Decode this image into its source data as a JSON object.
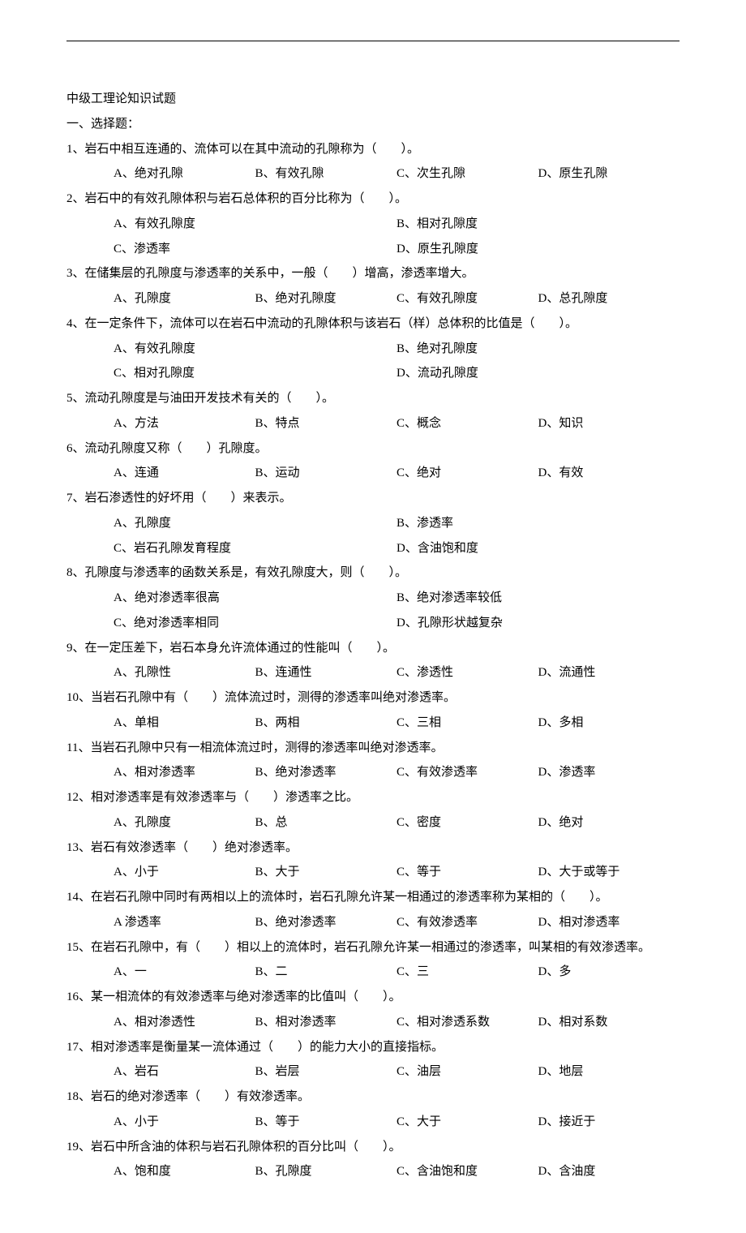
{
  "page": {
    "title": "中级工理论知识试题",
    "section1": "一、选择题："
  },
  "q": [
    {
      "n": "1",
      "stem": "岩石中相互连通的、流体可以在其中流动的孔隙称为（　　）。",
      "layout": "4",
      "opts": [
        "A、绝对孔隙",
        "B、有效孔隙",
        "C、次生孔隙",
        "D、原生孔隙"
      ]
    },
    {
      "n": "2",
      "stem": "岩石中的有效孔隙体积与岩石总体积的百分比称为（　　）。",
      "layout": "2x2",
      "opts": [
        "A、有效孔隙度",
        "B、相对孔隙度",
        "C、渗透率",
        "D、原生孔隙度"
      ]
    },
    {
      "n": "3",
      "stem": "在储集层的孔隙度与渗透率的关系中，一般（　　）增高，渗透率增大。",
      "layout": "4",
      "opts": [
        "A、孔隙度",
        "B、绝对孔隙度",
        "C、有效孔隙度",
        "D、总孔隙度"
      ]
    },
    {
      "n": "4",
      "stem": "在一定条件下，流体可以在岩石中流动的孔隙体积与该岩石（样）总体积的比值是（　　）。",
      "layout": "2x2",
      "opts": [
        "A、有效孔隙度",
        "B、绝对孔隙度",
        "C、相对孔隙度",
        "D、流动孔隙度"
      ]
    },
    {
      "n": "5",
      "stem": "流动孔隙度是与油田开发技术有关的（　　）。",
      "layout": "4",
      "opts": [
        "A、方法",
        "B、特点",
        "C、概念",
        "D、知识"
      ]
    },
    {
      "n": "6",
      "stem": "流动孔隙度又称（　　）孔隙度。",
      "layout": "4",
      "opts": [
        "A、连通",
        "B、运动",
        "C、绝对",
        "D、有效"
      ]
    },
    {
      "n": "7",
      "stem": "岩石渗透性的好坏用（　　）来表示。",
      "layout": "2x2",
      "opts": [
        "A、孔隙度",
        "B、渗透率",
        "C、岩石孔隙发育程度",
        "D、含油饱和度"
      ]
    },
    {
      "n": "8",
      "stem": "孔隙度与渗透率的函数关系是，有效孔隙度大，则（　　）。",
      "layout": "2x2",
      "opts": [
        "A、绝对渗透率很高",
        "B、绝对渗透率较低",
        "C、绝对渗透率相同",
        "D、孔隙形状越复杂"
      ]
    },
    {
      "n": "9",
      "stem": "在一定压差下，岩石本身允许流体通过的性能叫（　　）。",
      "layout": "4",
      "opts": [
        "A、孔隙性",
        "B、连通性",
        "C、渗透性",
        "D、流通性"
      ]
    },
    {
      "n": "10",
      "stem": "当岩石孔隙中有（　　）流体流过时，测得的渗透率叫绝对渗透率。",
      "layout": "4",
      "opts": [
        "A、单相",
        "B、两相",
        "C、三相",
        "D、多相"
      ]
    },
    {
      "n": "11",
      "stem": "当岩石孔隙中只有一相流体流过时，测得的渗透率叫绝对渗透率。",
      "layout": "4",
      "opts": [
        "A、相对渗透率",
        "B、绝对渗透率",
        "C、有效渗透率",
        "D、渗透率"
      ]
    },
    {
      "n": "12",
      "stem": "相对渗透率是有效渗透率与（　　）渗透率之比。",
      "layout": "4",
      "opts": [
        "A、孔隙度",
        "B、总",
        "C、密度",
        "D、绝对"
      ]
    },
    {
      "n": "13",
      "stem": "岩石有效渗透率（　　）绝对渗透率。",
      "layout": "4",
      "opts": [
        "A、小于",
        "B、大于",
        "C、等于",
        "D、大于或等于"
      ]
    },
    {
      "n": "14",
      "stem": "在岩石孔隙中同时有两相以上的流体时，岩石孔隙允许某一相通过的渗透率称为某相的（　　）。",
      "layout": "4",
      "opts": [
        "A 渗透率",
        "B、绝对渗透率",
        "C、有效渗透率",
        "D、相对渗透率"
      ]
    },
    {
      "n": "15",
      "stem": "在岩石孔隙中，有（　　）相以上的流体时，岩石孔隙允许某一相通过的渗透率，叫某相的有效渗透率。",
      "layout": "4",
      "opts": [
        "A、一",
        "B、二",
        "C、三",
        "D、多"
      ]
    },
    {
      "n": "16",
      "stem": "某一相流体的有效渗透率与绝对渗透率的比值叫（　　）。",
      "layout": "4",
      "opts": [
        "A、相对渗透性",
        "B、相对渗透率",
        "C、相对渗透系数",
        "D、相对系数"
      ]
    },
    {
      "n": "17",
      "stem": "相对渗透率是衡量某一流体通过（　　）的能力大小的直接指标。",
      "layout": "4",
      "opts": [
        "A、岩石",
        "B、岩层",
        "C、油层",
        "D、地层"
      ]
    },
    {
      "n": "18",
      "stem": "岩石的绝对渗透率（　　）有效渗透率。",
      "layout": "4",
      "opts": [
        "A、小于",
        "B、等于",
        "C、大于",
        "D、接近于"
      ]
    },
    {
      "n": "19",
      "stem": "岩石中所含油的体积与岩石孔隙体积的百分比叫（　　）。",
      "layout": "4",
      "opts": [
        "A、饱和度",
        "B、孔隙度",
        "C、含油饱和度",
        "D、含油度"
      ]
    }
  ]
}
